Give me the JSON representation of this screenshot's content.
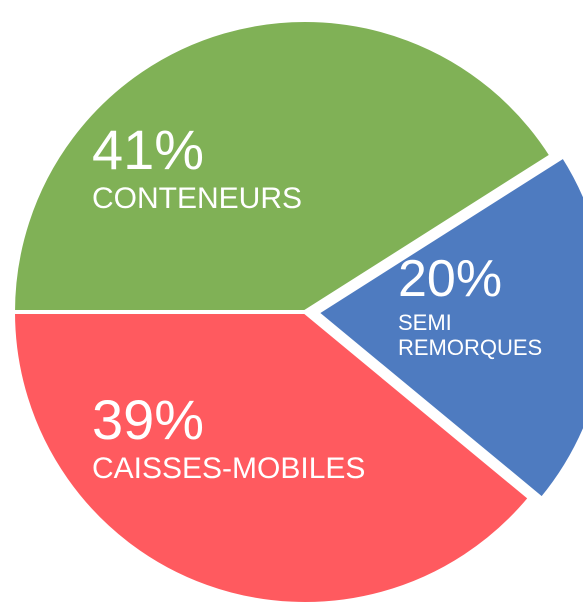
{
  "chart_data": {
    "type": "pie",
    "categories": [
      "CONTENEURS",
      "SEMI REMORQUES",
      "CAISSES-MOBILES"
    ],
    "values": [
      41,
      20,
      39
    ],
    "value_labels": [
      "41%",
      "20%",
      "39%"
    ],
    "colors": [
      "#80b156",
      "#4e7bc0",
      "#ff5a5f"
    ]
  }
}
